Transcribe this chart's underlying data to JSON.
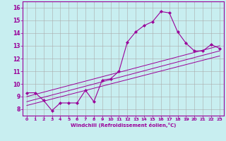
{
  "xlabel": "Windchill (Refroidissement éolien,°C)",
  "bg_color": "#c8eef0",
  "line_color": "#990099",
  "grid_color": "#aaaaaa",
  "xlim": [
    -0.5,
    23.5
  ],
  "ylim": [
    7.5,
    16.5
  ],
  "xticks": [
    0,
    1,
    2,
    3,
    4,
    5,
    6,
    7,
    8,
    9,
    10,
    11,
    12,
    13,
    14,
    15,
    16,
    17,
    18,
    19,
    20,
    21,
    22,
    23
  ],
  "yticks": [
    8,
    9,
    10,
    11,
    12,
    13,
    14,
    15,
    16
  ],
  "main_x": [
    0,
    1,
    2,
    3,
    4,
    5,
    6,
    7,
    8,
    9,
    10,
    11,
    12,
    13,
    14,
    15,
    16,
    17,
    18,
    19,
    20,
    21,
    22,
    23
  ],
  "main_y": [
    9.3,
    9.3,
    8.7,
    7.9,
    8.5,
    8.5,
    8.5,
    9.5,
    8.6,
    10.3,
    10.4,
    11.0,
    13.3,
    14.1,
    14.6,
    14.9,
    15.7,
    15.6,
    14.1,
    13.2,
    12.6,
    12.6,
    13.1,
    12.8
  ],
  "reg_lines": [
    {
      "x": [
        0,
        23
      ],
      "y": [
        8.3,
        12.2
      ]
    },
    {
      "x": [
        0,
        23
      ],
      "y": [
        8.6,
        12.6
      ]
    },
    {
      "x": [
        0,
        23
      ],
      "y": [
        9.0,
        13.0
      ]
    }
  ]
}
